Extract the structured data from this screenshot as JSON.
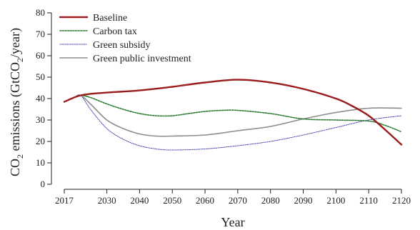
{
  "chart_data": {
    "type": "line",
    "title": "",
    "xlabel": "Year",
    "ylabel_prefix": "CO",
    "ylabel_sub": "2",
    "ylabel_mid": " emissions (GtCO",
    "ylabel_sub2": "2",
    "ylabel_suffix": "/year)",
    "xlim": [
      2017,
      2120
    ],
    "ylim": [
      0,
      80
    ],
    "x_ticks": [
      2017,
      2030,
      2040,
      2050,
      2060,
      2070,
      2080,
      2090,
      2100,
      2110,
      2120
    ],
    "x_tick_labels": [
      "2017",
      "2030",
      "2040",
      "2050",
      "2060",
      "2070",
      "2080",
      "2090",
      "2100",
      "2110",
      "2120"
    ],
    "y_ticks": [
      0,
      10,
      20,
      30,
      40,
      50,
      60,
      70,
      80
    ],
    "y_tick_labels": [
      "0",
      "10",
      "20",
      "30",
      "40",
      "50",
      "60",
      "70",
      "80"
    ],
    "grid": false,
    "legend_position": "top-left",
    "series": [
      {
        "name": "Baseline",
        "color": "#9b1c1c",
        "style": "solid",
        "x": [
          2017,
          2020,
          2022,
          2025,
          2030,
          2040,
          2050,
          2060,
          2070,
          2080,
          2090,
          2100,
          2105,
          2110,
          2115,
          2120
        ],
        "y": [
          38.5,
          40.5,
          41.5,
          42.2,
          42.8,
          43.8,
          45.5,
          47.5,
          48.8,
          47.5,
          44.5,
          40.0,
          36.5,
          32.0,
          25.5,
          18.5
        ]
      },
      {
        "name": "Carbon tax",
        "color": "#2e7d32",
        "style": "dotted",
        "x": [
          2017,
          2020,
          2022,
          2025,
          2030,
          2035,
          2040,
          2045,
          2050,
          2055,
          2060,
          2065,
          2070,
          2080,
          2090,
          2100,
          2110,
          2115,
          2120
        ],
        "y": [
          38.5,
          40.5,
          41.5,
          40.5,
          37.5,
          35.0,
          33.0,
          32.0,
          32.0,
          33.0,
          34.0,
          34.5,
          34.5,
          33.0,
          30.5,
          30.0,
          29.5,
          27.5,
          24.5
        ]
      },
      {
        "name": "Green subsidy",
        "color": "#3b3bb0",
        "style": "dotted",
        "x": [
          2017,
          2020,
          2022,
          2025,
          2030,
          2035,
          2040,
          2045,
          2050,
          2060,
          2070,
          2080,
          2090,
          2100,
          2110,
          2120
        ],
        "y": [
          38.5,
          40.5,
          41.5,
          35.0,
          26.0,
          21.0,
          18.0,
          16.5,
          16.0,
          16.5,
          18.0,
          20.0,
          23.0,
          26.5,
          30.0,
          32.0
        ]
      },
      {
        "name": "Green public investment",
        "color": "#8c8c8c",
        "style": "solid",
        "x": [
          2017,
          2020,
          2022,
          2025,
          2030,
          2035,
          2040,
          2045,
          2050,
          2060,
          2070,
          2080,
          2090,
          2100,
          2110,
          2120
        ],
        "y": [
          38.5,
          40.5,
          41.5,
          37.5,
          30.0,
          26.0,
          23.5,
          22.5,
          22.5,
          23.0,
          25.0,
          27.0,
          30.5,
          33.5,
          35.5,
          35.5
        ]
      }
    ]
  }
}
